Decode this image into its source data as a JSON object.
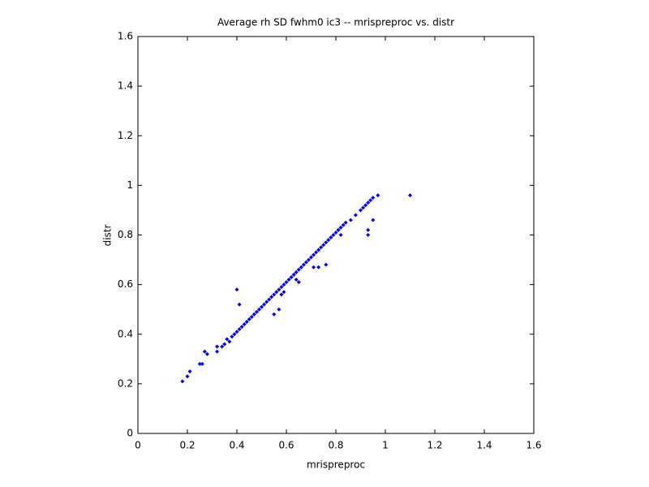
{
  "chart_data": {
    "type": "scatter",
    "title": "Average rh SD fwhm0 ic3 -- mrispreproc vs. distr",
    "x_label": "mrispreproc",
    "y_label": "distr",
    "color": "#0000ff",
    "x": [
      0.18,
      0.2,
      0.21,
      0.25,
      0.26,
      0.27,
      0.28,
      0.32,
      0.32,
      0.34,
      0.35,
      0.36,
      0.37,
      0.38,
      0.39,
      0.4,
      0.41,
      0.42,
      0.43,
      0.44,
      0.45,
      0.46,
      0.47,
      0.48,
      0.49,
      0.5,
      0.51,
      0.52,
      0.53,
      0.54,
      0.55,
      0.56,
      0.57,
      0.58,
      0.59,
      0.6,
      0.61,
      0.62,
      0.63,
      0.64,
      0.65,
      0.66,
      0.67,
      0.68,
      0.69,
      0.7,
      0.71,
      0.72,
      0.73,
      0.74,
      0.75,
      0.76,
      0.77,
      0.78,
      0.79,
      0.8,
      0.81,
      0.82,
      0.83,
      0.84,
      0.86,
      0.88,
      0.9,
      0.91,
      0.92,
      0.93,
      0.94,
      0.95,
      0.97,
      1.1,
      0.4,
      0.41,
      0.55,
      0.57,
      0.58,
      0.59,
      0.63,
      0.64,
      0.65,
      0.71,
      0.73,
      0.76,
      0.93,
      0.93,
      0.95,
      0.81,
      0.82
    ],
    "y": [
      0.21,
      0.23,
      0.25,
      0.28,
      0.28,
      0.33,
      0.32,
      0.33,
      0.35,
      0.35,
      0.36,
      0.38,
      0.37,
      0.39,
      0.4,
      0.41,
      0.42,
      0.43,
      0.44,
      0.45,
      0.46,
      0.47,
      0.48,
      0.49,
      0.5,
      0.51,
      0.52,
      0.53,
      0.54,
      0.55,
      0.56,
      0.57,
      0.58,
      0.59,
      0.6,
      0.61,
      0.62,
      0.63,
      0.64,
      0.65,
      0.66,
      0.67,
      0.68,
      0.69,
      0.7,
      0.71,
      0.72,
      0.73,
      0.74,
      0.75,
      0.76,
      0.77,
      0.78,
      0.79,
      0.8,
      0.81,
      0.82,
      0.83,
      0.84,
      0.85,
      0.86,
      0.88,
      0.9,
      0.91,
      0.92,
      0.93,
      0.94,
      0.95,
      0.96,
      0.96,
      0.58,
      0.52,
      0.48,
      0.5,
      0.56,
      0.57,
      0.64,
      0.62,
      0.61,
      0.67,
      0.67,
      0.68,
      0.8,
      0.82,
      0.86,
      0.82,
      0.8
    ],
    "xlim": [
      0,
      1.6
    ],
    "ylim": [
      0,
      1.6
    ],
    "xticks": [
      0,
      0.2,
      0.4,
      0.6,
      0.8,
      1,
      1.2,
      1.4,
      1.6
    ],
    "yticks": [
      0,
      0.2,
      0.4,
      0.6,
      0.8,
      1,
      1.2,
      1.4,
      1.6
    ]
  }
}
